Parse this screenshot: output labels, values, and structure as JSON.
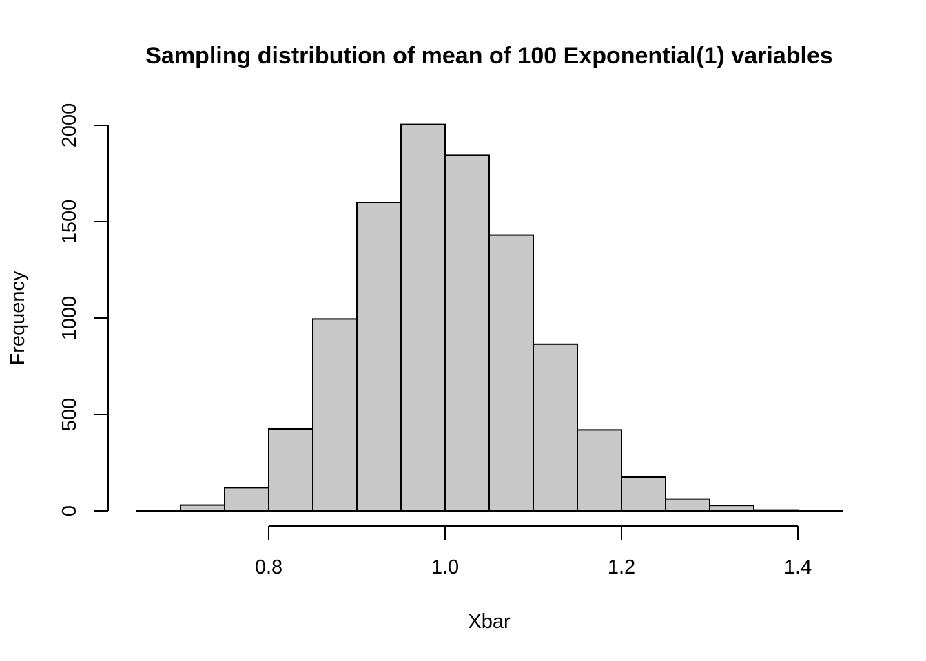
{
  "chart_data": {
    "type": "bar",
    "title": "Sampling distribution of mean of 100 Exponential(1) variables",
    "xlabel": "Xbar",
    "ylabel": "Frequency",
    "bin_edges": [
      0.65,
      0.7,
      0.75,
      0.8,
      0.85,
      0.9,
      0.95,
      1.0,
      1.05,
      1.1,
      1.15,
      1.2,
      1.25,
      1.3,
      1.35,
      1.4,
      1.45
    ],
    "values": [
      2,
      30,
      120,
      425,
      995,
      1600,
      2005,
      1845,
      1430,
      865,
      420,
      175,
      62,
      28,
      5,
      1
    ],
    "xticks": [
      "0.8",
      "1.0",
      "1.2",
      "1.4"
    ],
    "xtick_values": [
      0.8,
      1.0,
      1.2,
      1.4
    ],
    "yticks": [
      "0",
      "500",
      "1000",
      "1500",
      "2000"
    ],
    "ytick_values": [
      0,
      500,
      1000,
      1500,
      2000
    ],
    "xlim": [
      0.65,
      1.45
    ],
    "ylim": [
      0,
      2000
    ],
    "grid": false,
    "legend": "none",
    "bar_fill": "#c8c8c8",
    "bar_stroke": "#000000"
  }
}
